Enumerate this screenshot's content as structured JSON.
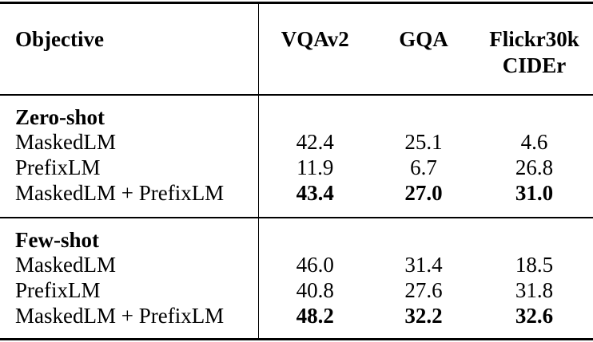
{
  "colors": {
    "background": "#ffffff",
    "text": "#000000",
    "rule": "#000000"
  },
  "table": {
    "header": {
      "objective": "Objective",
      "col1": "VQAv2",
      "col2": "GQA",
      "col3_line1": "Flickr30k",
      "col3_line2": "CIDEr"
    },
    "sections": [
      {
        "title": "Zero-shot",
        "rows": [
          {
            "label": "MaskedLM",
            "values": [
              "42.4",
              "25.1",
              "4.6"
            ],
            "values_bold": false
          },
          {
            "label": "PrefixLM",
            "values": [
              "11.9",
              "6.7",
              "26.8"
            ],
            "values_bold": false
          },
          {
            "label": "MaskedLM + PrefixLM",
            "values": [
              "43.4",
              "27.0",
              "31.0"
            ],
            "values_bold": true
          }
        ]
      },
      {
        "title": "Few-shot",
        "rows": [
          {
            "label": "MaskedLM",
            "values": [
              "46.0",
              "31.4",
              "18.5"
            ],
            "values_bold": false
          },
          {
            "label": "PrefixLM",
            "values": [
              "40.8",
              "27.6",
              "31.8"
            ],
            "values_bold": false
          },
          {
            "label": "MaskedLM + PrefixLM",
            "values": [
              "48.2",
              "32.2",
              "32.6"
            ],
            "values_bold": true
          }
        ]
      }
    ]
  }
}
